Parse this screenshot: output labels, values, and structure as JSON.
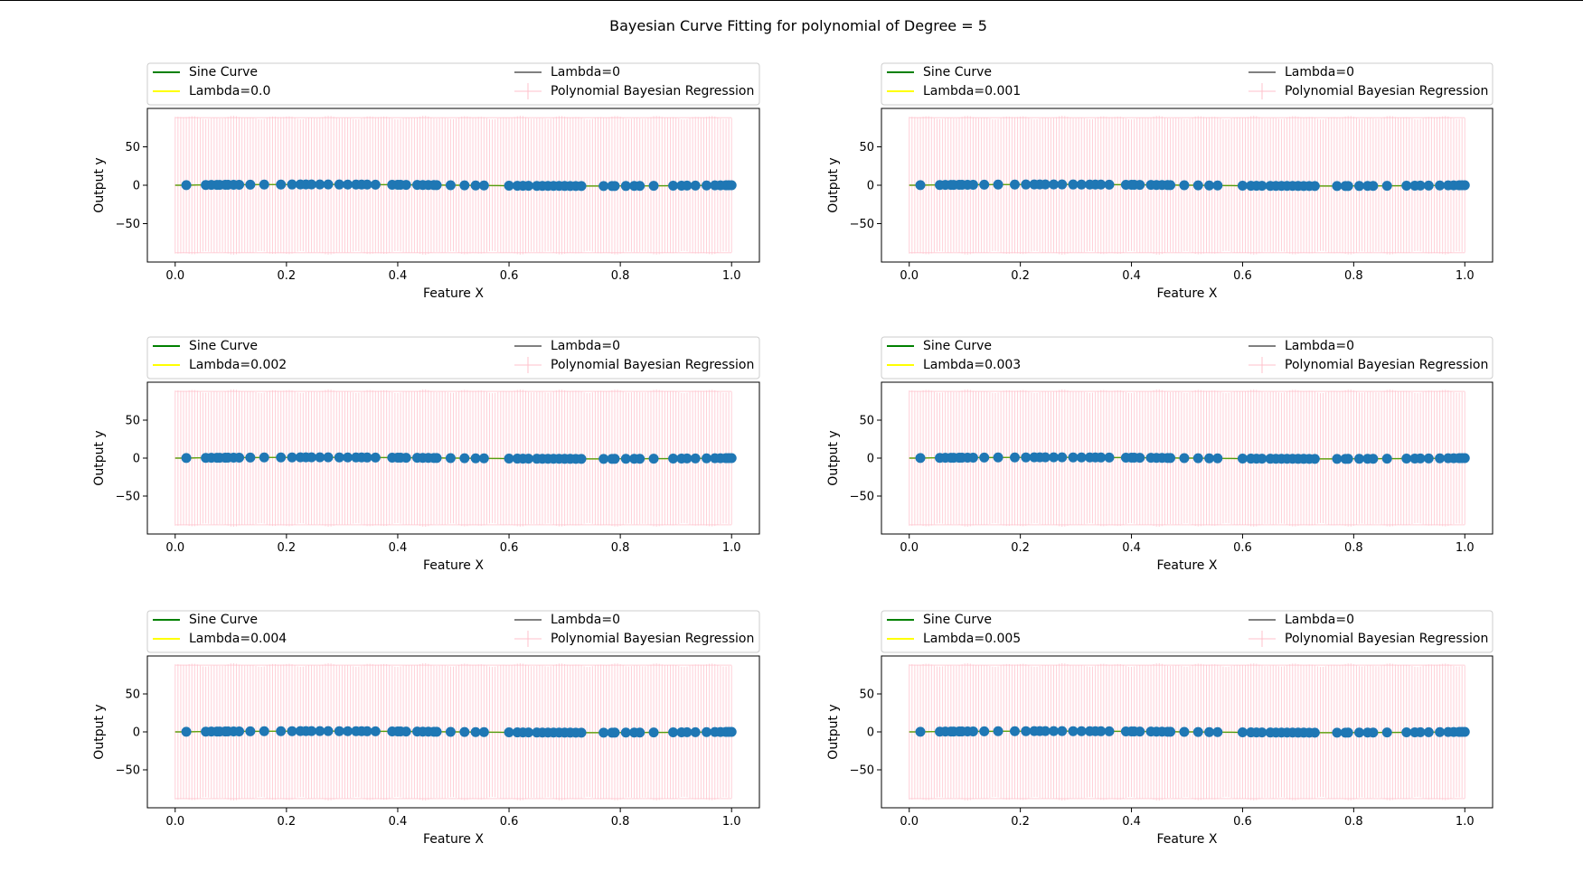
{
  "figure": {
    "title": "Bayesian Curve Fitting for polynomial of Degree = 5"
  },
  "colors": {
    "sine": "#008000",
    "lambda_fit": "#ffff00",
    "lambda_zero": "#808080",
    "error_band": "#ffc0cb",
    "points": "#1f77b4",
    "axes": "#000000"
  },
  "chart_data": [
    {
      "type": "scatter",
      "xlabel": "Feature X",
      "ylabel": "Output y",
      "xlim": [
        -0.05,
        1.05
      ],
      "ylim": [
        -100,
        100
      ],
      "xticks": [
        "0.0",
        "0.2",
        "0.4",
        "0.6",
        "0.8",
        "1.0"
      ],
      "yticks": [
        "50",
        "0",
        "−50"
      ],
      "legend": [
        "Sine Curve",
        "Lambda=0.0",
        "Lambda=0",
        "Polynomial Bayesian Regression"
      ],
      "legend_loc": "upper",
      "error_band": [
        -88,
        88
      ],
      "x": [
        0.02,
        0.055,
        0.065,
        0.075,
        0.08,
        0.09,
        0.095,
        0.105,
        0.115,
        0.135,
        0.16,
        0.19,
        0.21,
        0.225,
        0.235,
        0.245,
        0.26,
        0.275,
        0.295,
        0.31,
        0.325,
        0.335,
        0.345,
        0.36,
        0.39,
        0.4,
        0.405,
        0.415,
        0.435,
        0.445,
        0.455,
        0.465,
        0.47,
        0.495,
        0.52,
        0.54,
        0.555,
        0.6,
        0.615,
        0.625,
        0.635,
        0.65,
        0.66,
        0.67,
        0.68,
        0.69,
        0.7,
        0.71,
        0.72,
        0.73,
        0.77,
        0.785,
        0.79,
        0.81,
        0.825,
        0.835,
        0.86,
        0.895,
        0.91,
        0.92,
        0.935,
        0.955,
        0.97,
        0.98,
        0.99,
        0.995,
        1.0
      ],
      "y": [
        0.13,
        0.33,
        0.39,
        0.45,
        0.48,
        0.54,
        0.56,
        0.61,
        0.66,
        0.75,
        0.84,
        0.93,
        0.97,
        0.99,
        1.0,
        1.0,
        1.0,
        0.99,
        0.96,
        0.93,
        0.89,
        0.86,
        0.83,
        0.78,
        0.63,
        0.59,
        0.56,
        0.5,
        0.39,
        0.34,
        0.28,
        0.22,
        0.19,
        0.03,
        -0.13,
        -0.25,
        -0.33,
        -0.59,
        -0.67,
        -0.71,
        -0.76,
        -0.81,
        -0.84,
        -0.87,
        -0.9,
        -0.93,
        -0.95,
        -0.97,
        -0.98,
        -0.99,
        -0.99,
        -0.98,
        -0.97,
        -0.94,
        -0.89,
        -0.86,
        -0.78,
        -0.59,
        -0.52,
        -0.47,
        -0.39,
        -0.28,
        -0.19,
        -0.13,
        -0.06,
        -0.03,
        0.0
      ]
    },
    {
      "type": "scatter",
      "xlabel": "Feature X",
      "ylabel": "Output y",
      "xlim": [
        -0.05,
        1.05
      ],
      "ylim": [
        -100,
        100
      ],
      "xticks": [
        "0.0",
        "0.2",
        "0.4",
        "0.6",
        "0.8",
        "1.0"
      ],
      "yticks": [
        "50",
        "0",
        "−50"
      ],
      "legend": [
        "Sine Curve",
        "Lambda=0.001",
        "Lambda=0",
        "Polynomial Bayesian Regression"
      ],
      "legend_loc": "upper",
      "error_band": [
        -88,
        88
      ],
      "x": [
        0.02,
        0.055,
        0.065,
        0.075,
        0.08,
        0.09,
        0.095,
        0.105,
        0.115,
        0.135,
        0.16,
        0.19,
        0.21,
        0.225,
        0.235,
        0.245,
        0.26,
        0.275,
        0.295,
        0.31,
        0.325,
        0.335,
        0.345,
        0.36,
        0.39,
        0.4,
        0.405,
        0.415,
        0.435,
        0.445,
        0.455,
        0.465,
        0.47,
        0.495,
        0.52,
        0.54,
        0.555,
        0.6,
        0.615,
        0.625,
        0.635,
        0.65,
        0.66,
        0.67,
        0.68,
        0.69,
        0.7,
        0.71,
        0.72,
        0.73,
        0.77,
        0.785,
        0.79,
        0.81,
        0.825,
        0.835,
        0.86,
        0.895,
        0.91,
        0.92,
        0.935,
        0.955,
        0.97,
        0.98,
        0.99,
        0.995,
        1.0
      ],
      "y": [
        0.13,
        0.33,
        0.39,
        0.45,
        0.48,
        0.54,
        0.56,
        0.61,
        0.66,
        0.75,
        0.84,
        0.93,
        0.97,
        0.99,
        1.0,
        1.0,
        1.0,
        0.99,
        0.96,
        0.93,
        0.89,
        0.86,
        0.83,
        0.78,
        0.63,
        0.59,
        0.56,
        0.5,
        0.39,
        0.34,
        0.28,
        0.22,
        0.19,
        0.03,
        -0.13,
        -0.25,
        -0.33,
        -0.59,
        -0.67,
        -0.71,
        -0.76,
        -0.81,
        -0.84,
        -0.87,
        -0.9,
        -0.93,
        -0.95,
        -0.97,
        -0.98,
        -0.99,
        -0.99,
        -0.98,
        -0.97,
        -0.94,
        -0.89,
        -0.86,
        -0.78,
        -0.59,
        -0.52,
        -0.47,
        -0.39,
        -0.28,
        -0.19,
        -0.13,
        -0.06,
        -0.03,
        0.0
      ]
    },
    {
      "type": "scatter",
      "xlabel": "Feature X",
      "ylabel": "Output y",
      "xlim": [
        -0.05,
        1.05
      ],
      "ylim": [
        -100,
        100
      ],
      "xticks": [
        "0.0",
        "0.2",
        "0.4",
        "0.6",
        "0.8",
        "1.0"
      ],
      "yticks": [
        "50",
        "0",
        "−50"
      ],
      "legend": [
        "Sine Curve",
        "Lambda=0.002",
        "Lambda=0",
        "Polynomial Bayesian Regression"
      ],
      "legend_loc": "upper",
      "error_band": [
        -88,
        88
      ],
      "x": [
        0.02,
        0.055,
        0.065,
        0.075,
        0.08,
        0.09,
        0.095,
        0.105,
        0.115,
        0.135,
        0.16,
        0.19,
        0.21,
        0.225,
        0.235,
        0.245,
        0.26,
        0.275,
        0.295,
        0.31,
        0.325,
        0.335,
        0.345,
        0.36,
        0.39,
        0.4,
        0.405,
        0.415,
        0.435,
        0.445,
        0.455,
        0.465,
        0.47,
        0.495,
        0.52,
        0.54,
        0.555,
        0.6,
        0.615,
        0.625,
        0.635,
        0.65,
        0.66,
        0.67,
        0.68,
        0.69,
        0.7,
        0.71,
        0.72,
        0.73,
        0.77,
        0.785,
        0.79,
        0.81,
        0.825,
        0.835,
        0.86,
        0.895,
        0.91,
        0.92,
        0.935,
        0.955,
        0.97,
        0.98,
        0.99,
        0.995,
        1.0
      ],
      "y": [
        0.13,
        0.33,
        0.39,
        0.45,
        0.48,
        0.54,
        0.56,
        0.61,
        0.66,
        0.75,
        0.84,
        0.93,
        0.97,
        0.99,
        1.0,
        1.0,
        1.0,
        0.99,
        0.96,
        0.93,
        0.89,
        0.86,
        0.83,
        0.78,
        0.63,
        0.59,
        0.56,
        0.5,
        0.39,
        0.34,
        0.28,
        0.22,
        0.19,
        0.03,
        -0.13,
        -0.25,
        -0.33,
        -0.59,
        -0.67,
        -0.71,
        -0.76,
        -0.81,
        -0.84,
        -0.87,
        -0.9,
        -0.93,
        -0.95,
        -0.97,
        -0.98,
        -0.99,
        -0.99,
        -0.98,
        -0.97,
        -0.94,
        -0.89,
        -0.86,
        -0.78,
        -0.59,
        -0.52,
        -0.47,
        -0.39,
        -0.28,
        -0.19,
        -0.13,
        -0.06,
        -0.03,
        0.0
      ]
    },
    {
      "type": "scatter",
      "xlabel": "Feature X",
      "ylabel": "Output y",
      "xlim": [
        -0.05,
        1.05
      ],
      "ylim": [
        -100,
        100
      ],
      "xticks": [
        "0.0",
        "0.2",
        "0.4",
        "0.6",
        "0.8",
        "1.0"
      ],
      "yticks": [
        "50",
        "0",
        "−50"
      ],
      "legend": [
        "Sine Curve",
        "Lambda=0.003",
        "Lambda=0",
        "Polynomial Bayesian Regression"
      ],
      "legend_loc": "upper",
      "error_band": [
        -88,
        88
      ],
      "x": [
        0.02,
        0.055,
        0.065,
        0.075,
        0.08,
        0.09,
        0.095,
        0.105,
        0.115,
        0.135,
        0.16,
        0.19,
        0.21,
        0.225,
        0.235,
        0.245,
        0.26,
        0.275,
        0.295,
        0.31,
        0.325,
        0.335,
        0.345,
        0.36,
        0.39,
        0.4,
        0.405,
        0.415,
        0.435,
        0.445,
        0.455,
        0.465,
        0.47,
        0.495,
        0.52,
        0.54,
        0.555,
        0.6,
        0.615,
        0.625,
        0.635,
        0.65,
        0.66,
        0.67,
        0.68,
        0.69,
        0.7,
        0.71,
        0.72,
        0.73,
        0.77,
        0.785,
        0.79,
        0.81,
        0.825,
        0.835,
        0.86,
        0.895,
        0.91,
        0.92,
        0.935,
        0.955,
        0.97,
        0.98,
        0.99,
        0.995,
        1.0
      ],
      "y": [
        0.13,
        0.33,
        0.39,
        0.45,
        0.48,
        0.54,
        0.56,
        0.61,
        0.66,
        0.75,
        0.84,
        0.93,
        0.97,
        0.99,
        1.0,
        1.0,
        1.0,
        0.99,
        0.96,
        0.93,
        0.89,
        0.86,
        0.83,
        0.78,
        0.63,
        0.59,
        0.56,
        0.5,
        0.39,
        0.34,
        0.28,
        0.22,
        0.19,
        0.03,
        -0.13,
        -0.25,
        -0.33,
        -0.59,
        -0.67,
        -0.71,
        -0.76,
        -0.81,
        -0.84,
        -0.87,
        -0.9,
        -0.93,
        -0.95,
        -0.97,
        -0.98,
        -0.99,
        -0.99,
        -0.98,
        -0.97,
        -0.94,
        -0.89,
        -0.86,
        -0.78,
        -0.59,
        -0.52,
        -0.47,
        -0.39,
        -0.28,
        -0.19,
        -0.13,
        -0.06,
        -0.03,
        0.0
      ]
    },
    {
      "type": "scatter",
      "xlabel": "Feature X",
      "ylabel": "Output y",
      "xlim": [
        -0.05,
        1.05
      ],
      "ylim": [
        -100,
        100
      ],
      "xticks": [
        "0.0",
        "0.2",
        "0.4",
        "0.6",
        "0.8",
        "1.0"
      ],
      "yticks": [
        "50",
        "0",
        "−50"
      ],
      "legend": [
        "Sine Curve",
        "Lambda=0.004",
        "Lambda=0",
        "Polynomial Bayesian Regression"
      ],
      "legend_loc": "upper",
      "error_band": [
        -88,
        88
      ],
      "x": [
        0.02,
        0.055,
        0.065,
        0.075,
        0.08,
        0.09,
        0.095,
        0.105,
        0.115,
        0.135,
        0.16,
        0.19,
        0.21,
        0.225,
        0.235,
        0.245,
        0.26,
        0.275,
        0.295,
        0.31,
        0.325,
        0.335,
        0.345,
        0.36,
        0.39,
        0.4,
        0.405,
        0.415,
        0.435,
        0.445,
        0.455,
        0.465,
        0.47,
        0.495,
        0.52,
        0.54,
        0.555,
        0.6,
        0.615,
        0.625,
        0.635,
        0.65,
        0.66,
        0.67,
        0.68,
        0.69,
        0.7,
        0.71,
        0.72,
        0.73,
        0.77,
        0.785,
        0.79,
        0.81,
        0.825,
        0.835,
        0.86,
        0.895,
        0.91,
        0.92,
        0.935,
        0.955,
        0.97,
        0.98,
        0.99,
        0.995,
        1.0
      ],
      "y": [
        0.13,
        0.33,
        0.39,
        0.45,
        0.48,
        0.54,
        0.56,
        0.61,
        0.66,
        0.75,
        0.84,
        0.93,
        0.97,
        0.99,
        1.0,
        1.0,
        1.0,
        0.99,
        0.96,
        0.93,
        0.89,
        0.86,
        0.83,
        0.78,
        0.63,
        0.59,
        0.56,
        0.5,
        0.39,
        0.34,
        0.28,
        0.22,
        0.19,
        0.03,
        -0.13,
        -0.25,
        -0.33,
        -0.59,
        -0.67,
        -0.71,
        -0.76,
        -0.81,
        -0.84,
        -0.87,
        -0.9,
        -0.93,
        -0.95,
        -0.97,
        -0.98,
        -0.99,
        -0.99,
        -0.98,
        -0.97,
        -0.94,
        -0.89,
        -0.86,
        -0.78,
        -0.59,
        -0.52,
        -0.47,
        -0.39,
        -0.28,
        -0.19,
        -0.13,
        -0.06,
        -0.03,
        0.0
      ]
    },
    {
      "type": "scatter",
      "xlabel": "Feature X",
      "ylabel": "Output y",
      "xlim": [
        -0.05,
        1.05
      ],
      "ylim": [
        -100,
        100
      ],
      "xticks": [
        "0.0",
        "0.2",
        "0.4",
        "0.6",
        "0.8",
        "1.0"
      ],
      "yticks": [
        "50",
        "0",
        "−50"
      ],
      "legend": [
        "Sine Curve",
        "Lambda=0.005",
        "Lambda=0",
        "Polynomial Bayesian Regression"
      ],
      "legend_loc": "upper",
      "error_band": [
        -88,
        88
      ],
      "x": [
        0.02,
        0.055,
        0.065,
        0.075,
        0.08,
        0.09,
        0.095,
        0.105,
        0.115,
        0.135,
        0.16,
        0.19,
        0.21,
        0.225,
        0.235,
        0.245,
        0.26,
        0.275,
        0.295,
        0.31,
        0.325,
        0.335,
        0.345,
        0.36,
        0.39,
        0.4,
        0.405,
        0.415,
        0.435,
        0.445,
        0.455,
        0.465,
        0.47,
        0.495,
        0.52,
        0.54,
        0.555,
        0.6,
        0.615,
        0.625,
        0.635,
        0.65,
        0.66,
        0.67,
        0.68,
        0.69,
        0.7,
        0.71,
        0.72,
        0.73,
        0.77,
        0.785,
        0.79,
        0.81,
        0.825,
        0.835,
        0.86,
        0.895,
        0.91,
        0.92,
        0.935,
        0.955,
        0.97,
        0.98,
        0.99,
        0.995,
        1.0
      ],
      "y": [
        0.13,
        0.33,
        0.39,
        0.45,
        0.48,
        0.54,
        0.56,
        0.61,
        0.66,
        0.75,
        0.84,
        0.93,
        0.97,
        0.99,
        1.0,
        1.0,
        1.0,
        0.99,
        0.96,
        0.93,
        0.89,
        0.86,
        0.83,
        0.78,
        0.63,
        0.59,
        0.56,
        0.5,
        0.39,
        0.34,
        0.28,
        0.22,
        0.19,
        0.03,
        -0.13,
        -0.25,
        -0.33,
        -0.59,
        -0.67,
        -0.71,
        -0.76,
        -0.81,
        -0.84,
        -0.87,
        -0.9,
        -0.93,
        -0.95,
        -0.97,
        -0.98,
        -0.99,
        -0.99,
        -0.98,
        -0.97,
        -0.94,
        -0.89,
        -0.86,
        -0.78,
        -0.59,
        -0.52,
        -0.47,
        -0.39,
        -0.28,
        -0.19,
        -0.13,
        -0.06,
        -0.03,
        0.0
      ]
    }
  ]
}
